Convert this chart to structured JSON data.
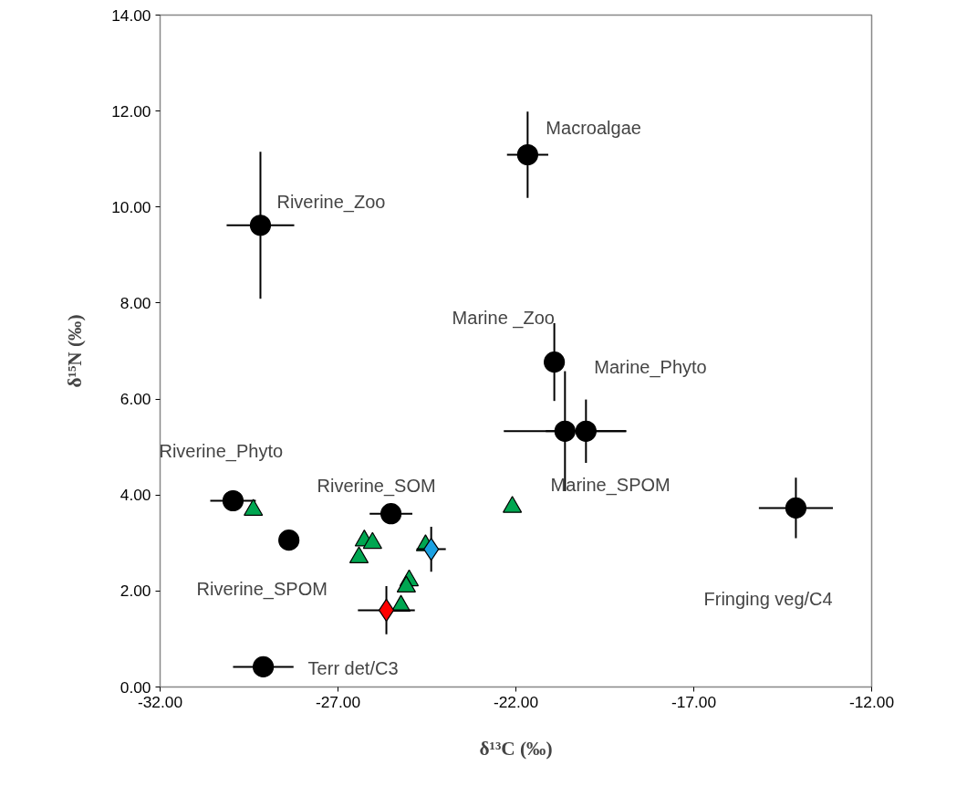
{
  "chart_data": {
    "type": "scatter",
    "xlabel": "δ¹³C (‰)",
    "ylabel": "δ¹⁵N (‰)",
    "xlim": [
      -32,
      -12
    ],
    "ylim": [
      0,
      14
    ],
    "xticks": [
      {
        "value": -32,
        "label": "-32.00"
      },
      {
        "value": -27,
        "label": "-27.00"
      },
      {
        "value": -22,
        "label": "-22.00"
      },
      {
        "value": -17,
        "label": "-17.00"
      },
      {
        "value": -12,
        "label": "-12.00"
      }
    ],
    "yticks": [
      {
        "value": 0,
        "label": "0.00"
      },
      {
        "value": 2,
        "label": "2.00"
      },
      {
        "value": 4,
        "label": "4.00"
      },
      {
        "value": 6,
        "label": "6.00"
      },
      {
        "value": 8,
        "label": "8.00"
      },
      {
        "value": 10,
        "label": "10.00"
      },
      {
        "value": 12,
        "label": "12.00"
      },
      {
        "value": 14,
        "label": "14.00"
      }
    ],
    "grid": false,
    "series": [
      {
        "color": "#000000",
        "marker": "circle",
        "x": [
          -29.18,
          -21.67,
          -20.92,
          -20.62,
          -20.03,
          -14.13,
          -29.95,
          -28.38,
          -25.51,
          -29.1
        ],
        "values": [
          9.62,
          11.09,
          6.77,
          5.33,
          5.33,
          3.73,
          3.88,
          3.06,
          3.61,
          0.42
        ],
        "errors": [
          1.53,
          0.9,
          0.81,
          1.25,
          0.66,
          0.63,
          null,
          null,
          null,
          null
        ],
        "xerrors": [
          0.95,
          0.58,
          null,
          1.72,
          1.13,
          1.04,
          0.64,
          null,
          0.6,
          0.85
        ]
      },
      {
        "color": "#00a651",
        "marker": "triangle",
        "x": [
          -29.38,
          -26.26,
          -26.03,
          -26.41,
          -24.54,
          -25.0,
          -25.08,
          -25.23,
          -22.1
        ],
        "values": [
          3.69,
          3.05,
          3.0,
          2.7,
          2.95,
          2.22,
          2.09,
          1.69,
          3.75
        ]
      },
      {
        "color": "#1ba1e2",
        "marker": "diamond",
        "x": [
          -24.38
        ],
        "values": [
          2.87
        ],
        "errors": [
          0.47
        ],
        "xerrors": [
          0.41
        ]
      },
      {
        "color": "#ff0000",
        "marker": "diamond",
        "x": [
          -25.64
        ],
        "values": [
          1.6
        ],
        "errors": [
          0.5
        ],
        "xerrors": [
          0.8
        ]
      }
    ],
    "annotations": [
      {
        "text": "Riverine_Zoo",
        "x": -29.18,
        "y": 9.62
      },
      {
        "text": "Macroalgae",
        "x": -21.67,
        "y": 11.09
      },
      {
        "text": "Marine _Zoo",
        "x": -20.92,
        "y": 6.77
      },
      {
        "text": "Marine_Phyto",
        "x": -20.03,
        "y": 5.33
      },
      {
        "text": "Riverine_Phyto",
        "x": -29.95,
        "y": 3.88
      },
      {
        "text": "Riverine_SOM",
        "x": -25.51,
        "y": 3.61
      },
      {
        "text": "Marine_SPOM",
        "x": -22.1,
        "y": 3.75
      },
      "Riverine_SPOM",
      "Fringing veg/C4",
      {
        "text": "Terr det/C3",
        "x": -29.1,
        "y": 0.42
      }
    ]
  }
}
